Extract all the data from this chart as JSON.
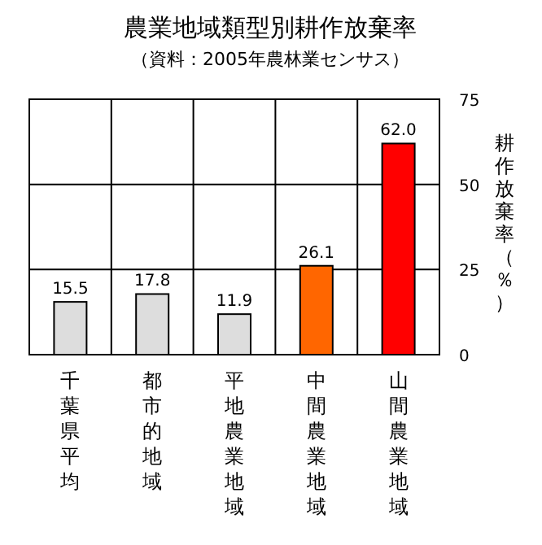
{
  "chart_data": {
    "type": "bar",
    "title": "農業地域類型別耕作放棄率",
    "subtitle": "（資料：2005年農林業センサス）",
    "y2label": "耕作放棄率（％）",
    "categories": [
      "千葉県平均",
      "都市的地域",
      "平地農業地域",
      "中間農業地域",
      "山間農業地域"
    ],
    "values": [
      15.5,
      17.8,
      11.9,
      26.1,
      62.0
    ],
    "value_labels": [
      "15.5",
      "17.8",
      "11.9",
      "26.1",
      "62.0"
    ],
    "colors": [
      "#dddddd",
      "#dddddd",
      "#dddddd",
      "#ff6600",
      "#ff0000"
    ],
    "ylim": [
      0,
      75
    ],
    "yticks": [
      0,
      25,
      50,
      75
    ],
    "grid": true
  }
}
